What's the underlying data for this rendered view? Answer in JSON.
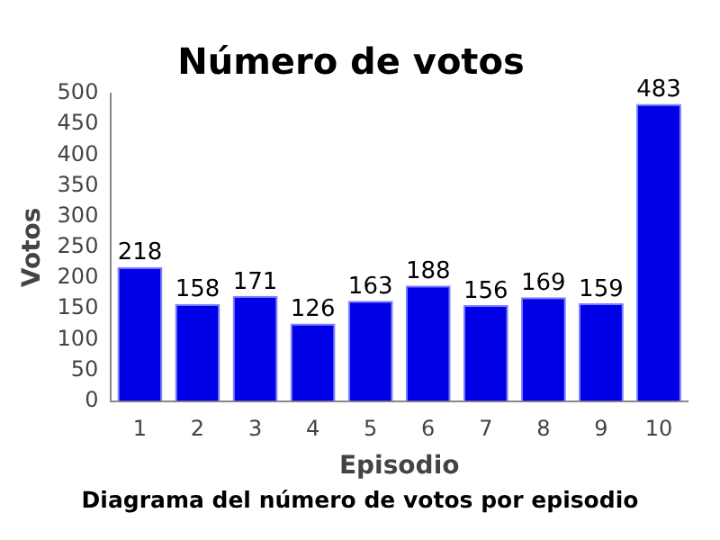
{
  "chart_data": {
    "type": "bar",
    "title": "Número de votos",
    "xlabel": "Episodio",
    "ylabel": "Votos",
    "categories": [
      "1",
      "2",
      "3",
      "4",
      "5",
      "6",
      "7",
      "8",
      "9",
      "10"
    ],
    "values": [
      218,
      158,
      171,
      126,
      163,
      188,
      156,
      169,
      159,
      483
    ],
    "color": "#0000e6",
    "ylim": [
      0,
      500
    ],
    "yticks": [
      0,
      50,
      100,
      150,
      200,
      250,
      300,
      350,
      400,
      450,
      500
    ],
    "data_labels": true,
    "grid": false,
    "legend": false,
    "annotations": [
      "Diagrama del número de votos por episodio"
    ]
  }
}
